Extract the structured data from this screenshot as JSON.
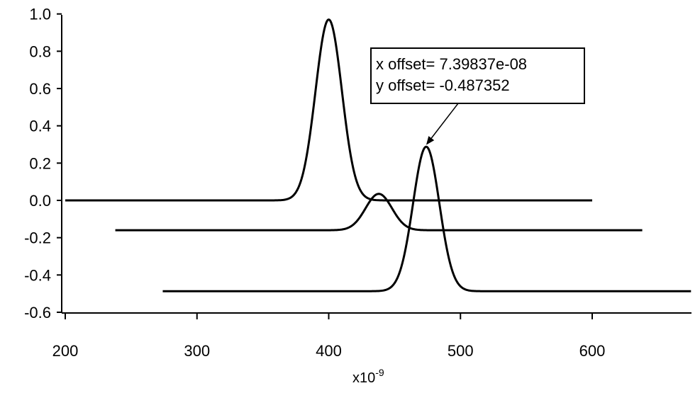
{
  "chart_data": {
    "type": "line",
    "title": "",
    "xlabel": "",
    "ylabel": "",
    "x_unit_label": {
      "base": "x10",
      "exponent": "-9"
    },
    "xlim": [
      200,
      675
    ],
    "ylim": [
      -0.65,
      1.0
    ],
    "x_ticks": [
      200,
      300,
      400,
      500,
      600
    ],
    "x_tick_labels": [
      "200",
      "300",
      "400",
      "500",
      "600"
    ],
    "y_ticks": [
      1.0,
      0.8,
      0.6,
      0.4,
      0.2,
      0.0,
      -0.2,
      -0.4,
      -0.6
    ],
    "y_tick_labels": [
      "1.0",
      "0.8",
      "0.6",
      "0.4",
      "0.2",
      "0.0",
      "-0.2",
      "-0.4",
      "-0.6"
    ],
    "grid": false,
    "legend": "none",
    "series": [
      {
        "x_range": [
          200,
          600
        ],
        "baseline": 0.0,
        "peak_center": 400,
        "peak_height": 0.97,
        "peak_sigma": 10
      },
      {
        "x_range": [
          238,
          638
        ],
        "baseline": -0.16,
        "peak_center": 438,
        "peak_height": 0.195,
        "peak_sigma": 10
      },
      {
        "x_range": [
          274,
          675
        ],
        "baseline": -0.487,
        "peak_center": 474,
        "peak_height": 0.775,
        "peak_sigma": 10
      }
    ],
    "annotation": {
      "lines": [
        "x offset= 7.39837e-08",
        "y offset= -0.487352"
      ],
      "target_x": 474,
      "target_y": 0.29
    }
  }
}
